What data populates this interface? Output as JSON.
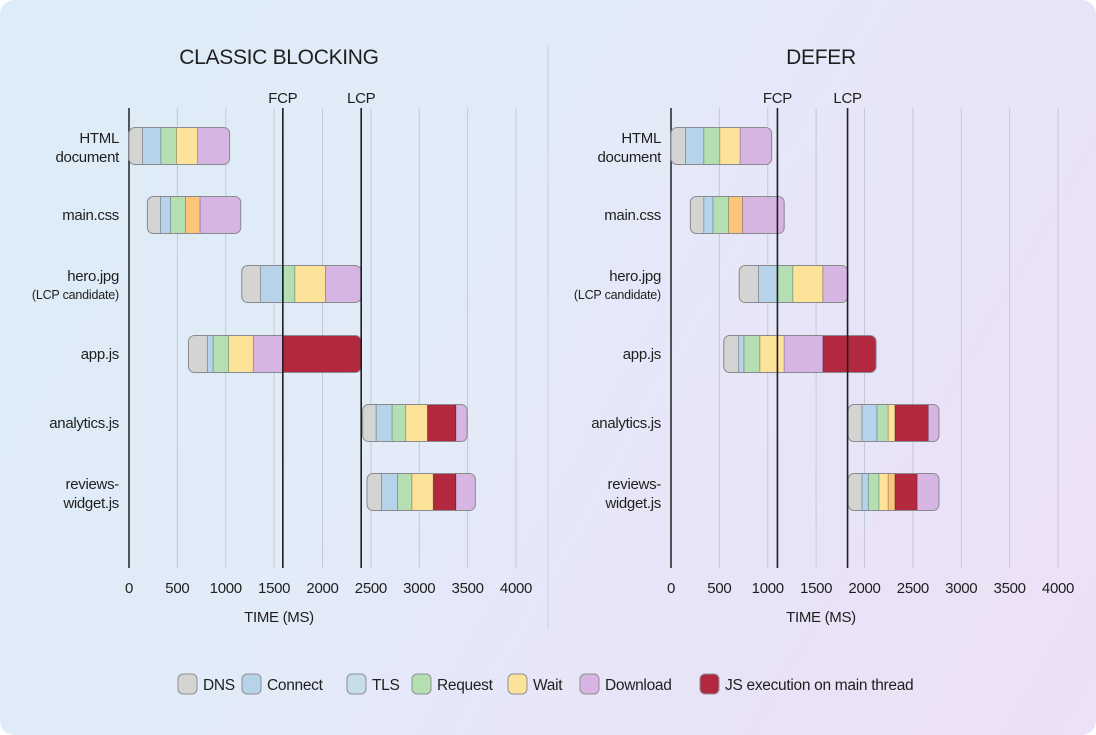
{
  "colors": {
    "DNS": "#d4d4d2",
    "Connect": "#b6d3ea",
    "TLS": "#c5dde6",
    "Request": "#b4dfb2",
    "Wait": "#fde29a",
    "Wait-alt": "#fdc47c",
    "Download": "#d7b5e3",
    "JS execution on main thread": "#b2283f"
  },
  "legend": [
    "DNS",
    "Connect",
    "TLS",
    "Request",
    "Wait",
    "Download",
    "JS execution on main thread"
  ],
  "chart_data": [
    {
      "type": "bar",
      "subtype": "waterfall",
      "title": "CLASSIC BLOCKING",
      "xlabel": "TIME (MS)",
      "xlim": [
        0,
        4000
      ],
      "xticks": [
        "0",
        "500",
        "1000",
        "1500",
        "2000",
        "2500",
        "3000",
        "3500",
        "4000"
      ],
      "grid": true,
      "markers": [
        {
          "label": "FCP",
          "x": 1590
        },
        {
          "label": "LCP",
          "x": 2400
        }
      ],
      "rows": [
        {
          "label": [
            "HTML",
            "document"
          ],
          "segments": [
            {
              "phase": "DNS",
              "start": 0,
              "end": 140
            },
            {
              "phase": "Connect",
              "start": 140,
              "end": 330
            },
            {
              "phase": "Request",
              "start": 330,
              "end": 490
            },
            {
              "phase": "Wait",
              "start": 490,
              "end": 710
            },
            {
              "phase": "Download",
              "start": 710,
              "end": 1040
            }
          ]
        },
        {
          "label": [
            "main.css"
          ],
          "segments": [
            {
              "phase": "DNS",
              "start": 190,
              "end": 325
            },
            {
              "phase": "Connect",
              "start": 325,
              "end": 430
            },
            {
              "phase": "Request",
              "start": 430,
              "end": 585
            },
            {
              "phase": "Wait-alt",
              "start": 585,
              "end": 735
            },
            {
              "phase": "Download",
              "start": 735,
              "end": 1155
            }
          ]
        },
        {
          "label": [
            "hero.jpg"
          ],
          "sublabel": "(LCP candidate)",
          "segments": [
            {
              "phase": "DNS",
              "start": 1165,
              "end": 1360
            },
            {
              "phase": "Connect",
              "start": 1360,
              "end": 1595
            },
            {
              "phase": "Request",
              "start": 1595,
              "end": 1715
            },
            {
              "phase": "Wait",
              "start": 1715,
              "end": 2030
            },
            {
              "phase": "Download",
              "start": 2030,
              "end": 2400
            }
          ]
        },
        {
          "label": [
            "app.js"
          ],
          "segments": [
            {
              "phase": "DNS",
              "start": 615,
              "end": 810
            },
            {
              "phase": "Connect",
              "start": 810,
              "end": 870
            },
            {
              "phase": "Request",
              "start": 870,
              "end": 1030
            },
            {
              "phase": "Wait",
              "start": 1030,
              "end": 1285
            },
            {
              "phase": "Download",
              "start": 1285,
              "end": 1590
            },
            {
              "phase": "JS execution on main thread",
              "start": 1590,
              "end": 2400
            }
          ]
        },
        {
          "label": [
            "analytics.js"
          ],
          "segments": [
            {
              "phase": "DNS",
              "start": 2415,
              "end": 2555
            },
            {
              "phase": "Connect",
              "start": 2555,
              "end": 2720
            },
            {
              "phase": "Request",
              "start": 2720,
              "end": 2860
            },
            {
              "phase": "Wait",
              "start": 2860,
              "end": 3085
            },
            {
              "phase": "JS execution on main thread",
              "start": 3085,
              "end": 3380
            },
            {
              "phase": "Download",
              "start": 3380,
              "end": 3495
            }
          ]
        },
        {
          "label": [
            "reviews-",
            "widget.js"
          ],
          "segments": [
            {
              "phase": "DNS",
              "start": 2460,
              "end": 2610
            },
            {
              "phase": "Connect",
              "start": 2610,
              "end": 2775
            },
            {
              "phase": "Request",
              "start": 2775,
              "end": 2925
            },
            {
              "phase": "Wait",
              "start": 2925,
              "end": 3145
            },
            {
              "phase": "JS execution on main thread",
              "start": 3145,
              "end": 3380
            },
            {
              "phase": "Download",
              "start": 3380,
              "end": 3580
            }
          ]
        }
      ]
    },
    {
      "type": "bar",
      "subtype": "waterfall",
      "title": "DEFER",
      "xlabel": "TIME (MS)",
      "xlim": [
        0,
        4000
      ],
      "xticks": [
        "0",
        "500",
        "1000",
        "1500",
        "2000",
        "2500",
        "3000",
        "3500",
        "4000"
      ],
      "grid": true,
      "markers": [
        {
          "label": "FCP",
          "x": 1100
        },
        {
          "label": "LCP",
          "x": 1825
        }
      ],
      "rows": [
        {
          "label": [
            "HTML",
            "document"
          ],
          "segments": [
            {
              "phase": "DNS",
              "start": 0,
              "end": 150
            },
            {
              "phase": "Connect",
              "start": 150,
              "end": 340
            },
            {
              "phase": "Request",
              "start": 340,
              "end": 505
            },
            {
              "phase": "Wait",
              "start": 505,
              "end": 715
            },
            {
              "phase": "Download",
              "start": 715,
              "end": 1040
            }
          ]
        },
        {
          "label": [
            "main.css"
          ],
          "segments": [
            {
              "phase": "DNS",
              "start": 200,
              "end": 340
            },
            {
              "phase": "Connect",
              "start": 340,
              "end": 435
            },
            {
              "phase": "Request",
              "start": 435,
              "end": 595
            },
            {
              "phase": "Wait-alt",
              "start": 595,
              "end": 740
            },
            {
              "phase": "Download",
              "start": 740,
              "end": 1170
            }
          ]
        },
        {
          "label": [
            "hero.jpg"
          ],
          "sublabel": "(LCP candidate)",
          "segments": [
            {
              "phase": "DNS",
              "start": 705,
              "end": 905
            },
            {
              "phase": "Connect",
              "start": 905,
              "end": 1100
            },
            {
              "phase": "Request",
              "start": 1100,
              "end": 1260
            },
            {
              "phase": "Wait",
              "start": 1260,
              "end": 1570
            },
            {
              "phase": "Download",
              "start": 1570,
              "end": 1825
            }
          ]
        },
        {
          "label": [
            "app.js"
          ],
          "segments": [
            {
              "phase": "DNS",
              "start": 545,
              "end": 700
            },
            {
              "phase": "Connect",
              "start": 700,
              "end": 755
            },
            {
              "phase": "Request",
              "start": 755,
              "end": 920
            },
            {
              "phase": "Wait",
              "start": 920,
              "end": 1170
            },
            {
              "phase": "Download",
              "start": 1170,
              "end": 1570
            },
            {
              "phase": "JS execution on main thread",
              "start": 1570,
              "end": 2120
            }
          ]
        },
        {
          "label": [
            "analytics.js"
          ],
          "segments": [
            {
              "phase": "DNS",
              "start": 1830,
              "end": 1975
            },
            {
              "phase": "Connect",
              "start": 1975,
              "end": 2130
            },
            {
              "phase": "Request",
              "start": 2130,
              "end": 2245
            },
            {
              "phase": "Wait",
              "start": 2245,
              "end": 2315
            },
            {
              "phase": "JS execution on main thread",
              "start": 2315,
              "end": 2660
            },
            {
              "phase": "Download",
              "start": 2660,
              "end": 2770
            }
          ]
        },
        {
          "label": [
            "reviews-",
            "widget.js"
          ],
          "segments": [
            {
              "phase": "DNS",
              "start": 1830,
              "end": 1975
            },
            {
              "phase": "Connect",
              "start": 1975,
              "end": 2040
            },
            {
              "phase": "Request",
              "start": 2040,
              "end": 2150
            },
            {
              "phase": "Wait",
              "start": 2150,
              "end": 2245
            },
            {
              "phase": "Wait-alt",
              "start": 2245,
              "end": 2315
            },
            {
              "phase": "JS execution on main thread",
              "start": 2315,
              "end": 2545
            },
            {
              "phase": "Download",
              "start": 2545,
              "end": 2770
            }
          ]
        }
      ]
    }
  ]
}
